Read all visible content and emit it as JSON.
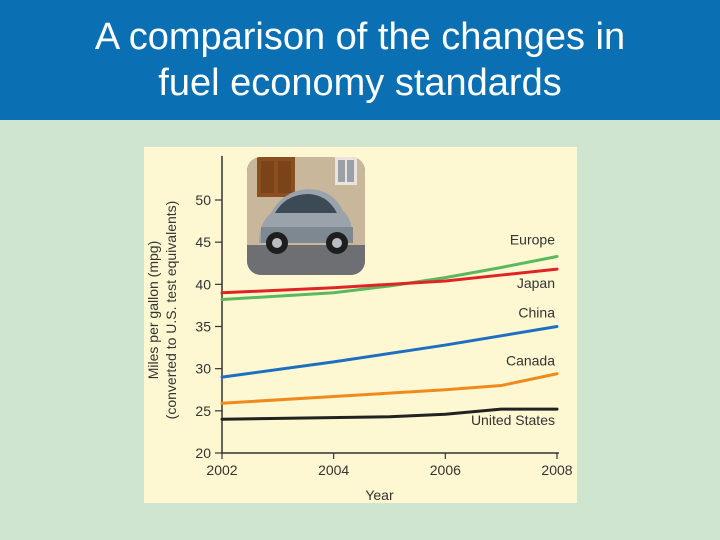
{
  "slide": {
    "title_line1": "A comparison of the changes in",
    "title_line2": "fuel economy standards"
  },
  "colors": {
    "title_bar": "#0a6fb3",
    "background": "#cfe5cf",
    "chart_panel": "#fdf8d2"
  },
  "chart_data": {
    "type": "line",
    "xlabel": "Year",
    "ylabel_line1": "Miles per gallon (mpg)",
    "ylabel_line2": "(converted to U.S. test equivalents)",
    "xlim": [
      2002,
      2008
    ],
    "ylim": [
      20,
      55
    ],
    "xticks": [
      2002,
      2004,
      2006,
      2008
    ],
    "yticks": [
      20,
      25,
      30,
      35,
      40,
      45,
      50
    ],
    "grid": false,
    "series": [
      {
        "name": "Europe",
        "color": "#5cb85c",
        "x": [
          2002,
          2004,
          2005,
          2006,
          2007,
          2008
        ],
        "y": [
          38.2,
          39.0,
          39.8,
          40.8,
          42.0,
          43.3
        ]
      },
      {
        "name": "Japan",
        "color": "#e02424",
        "x": [
          2002,
          2004,
          2006,
          2007,
          2008
        ],
        "y": [
          39.0,
          39.6,
          40.4,
          41.1,
          41.8
        ]
      },
      {
        "name": "China",
        "color": "#1f6fc0",
        "x": [
          2002,
          2004,
          2006,
          2008
        ],
        "y": [
          29.0,
          30.8,
          32.8,
          35.0
        ]
      },
      {
        "name": "Canada",
        "color": "#f08a1c",
        "x": [
          2002,
          2004,
          2006,
          2007,
          2008
        ],
        "y": [
          25.9,
          26.7,
          27.5,
          28.0,
          29.4
        ]
      },
      {
        "name": "United States",
        "color": "#222222",
        "x": [
          2002,
          2005,
          2006,
          2007,
          2008
        ],
        "y": [
          24.0,
          24.3,
          24.6,
          25.2,
          25.2
        ]
      }
    ]
  },
  "photo": {
    "subject": "small-car-photo"
  }
}
